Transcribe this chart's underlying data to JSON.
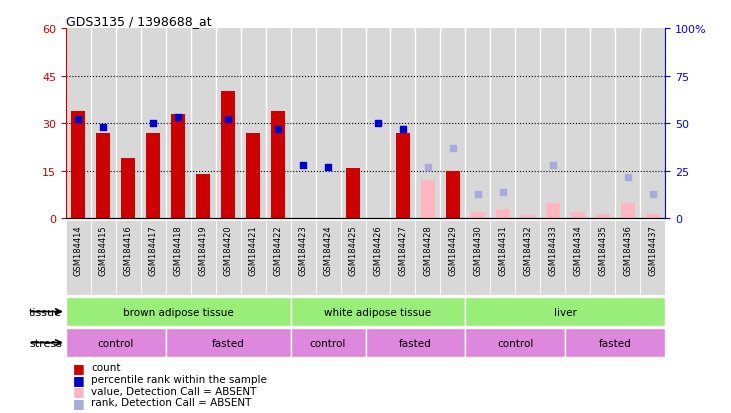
{
  "title": "GDS3135 / 1398688_at",
  "samples": [
    "GSM184414",
    "GSM184415",
    "GSM184416",
    "GSM184417",
    "GSM184418",
    "GSM184419",
    "GSM184420",
    "GSM184421",
    "GSM184422",
    "GSM184423",
    "GSM184424",
    "GSM184425",
    "GSM184426",
    "GSM184427",
    "GSM184428",
    "GSM184429",
    "GSM184430",
    "GSM184431",
    "GSM184432",
    "GSM184433",
    "GSM184434",
    "GSM184435",
    "GSM184436",
    "GSM184437"
  ],
  "count_present": [
    34,
    27,
    19,
    27,
    33,
    14,
    40,
    27,
    34,
    null,
    null,
    16,
    null,
    27,
    null,
    15,
    null,
    null,
    null,
    null,
    null,
    null,
    null,
    null
  ],
  "count_absent": [
    null,
    null,
    null,
    null,
    null,
    null,
    null,
    null,
    null,
    null,
    null,
    null,
    null,
    null,
    12,
    null,
    2,
    3,
    1,
    5,
    2,
    1.5,
    5,
    1.5
  ],
  "rank_present": [
    52,
    48,
    null,
    50,
    53,
    null,
    52,
    null,
    47,
    28,
    27,
    null,
    50,
    47,
    null,
    null,
    null,
    null,
    null,
    null,
    null,
    null,
    null,
    null
  ],
  "rank_absent": [
    null,
    null,
    null,
    null,
    null,
    null,
    null,
    null,
    null,
    null,
    null,
    null,
    null,
    null,
    27,
    37,
    13,
    14,
    null,
    28,
    null,
    null,
    22,
    13
  ],
  "ylim_left": [
    0,
    60
  ],
  "yticks_left": [
    0,
    15,
    30,
    45,
    60
  ],
  "ylim_right": [
    0,
    100
  ],
  "yticks_right": [
    0,
    25,
    50,
    75,
    100
  ],
  "bar_color_present": "#CC0000",
  "bar_color_absent": "#FFB6C1",
  "rank_color_present": "#0000CC",
  "rank_color_absent": "#AAAADD",
  "bar_width": 0.55,
  "cell_bg_color": "#D8D8D8",
  "tissue_color": "#98EE78",
  "stress_color": "#DD88DD",
  "tissue_groups": [
    {
      "label": "brown adipose tissue",
      "start": 0,
      "end": 9
    },
    {
      "label": "white adipose tissue",
      "start": 9,
      "end": 16
    },
    {
      "label": "liver",
      "start": 16,
      "end": 24
    }
  ],
  "stress_groups": [
    {
      "label": "control",
      "start": 0,
      "end": 4
    },
    {
      "label": "fasted",
      "start": 4,
      "end": 9
    },
    {
      "label": "control",
      "start": 9,
      "end": 12
    },
    {
      "label": "fasted",
      "start": 12,
      "end": 16
    },
    {
      "label": "control",
      "start": 16,
      "end": 20
    },
    {
      "label": "fasted",
      "start": 20,
      "end": 24
    }
  ],
  "legend_items": [
    {
      "color": "#CC0000",
      "label": "count"
    },
    {
      "color": "#0000CC",
      "label": "percentile rank within the sample"
    },
    {
      "color": "#FFB6C1",
      "label": "value, Detection Call = ABSENT"
    },
    {
      "color": "#AAAADD",
      "label": "rank, Detection Call = ABSENT"
    }
  ]
}
